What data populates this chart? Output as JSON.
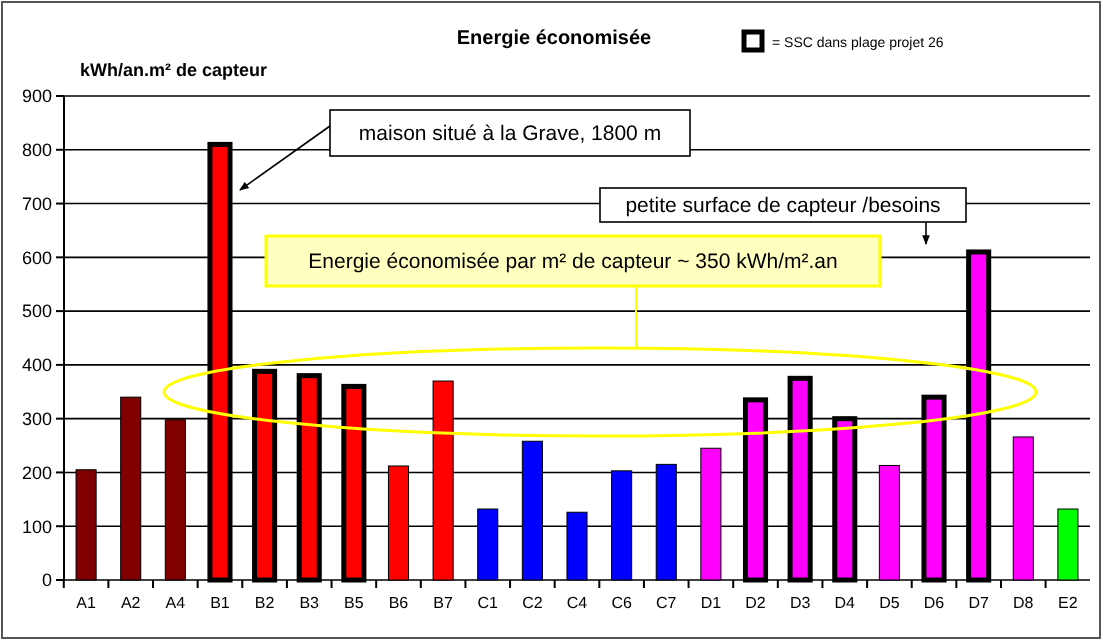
{
  "chart_data": {
    "type": "bar",
    "title": "Energie économisée",
    "ylabel": "kWh/an.m² de capteur",
    "categories": [
      "A1",
      "A2",
      "A4",
      "B1",
      "B2",
      "B3",
      "B5",
      "B6",
      "B7",
      "C1",
      "C2",
      "C4",
      "C6",
      "C7",
      "D1",
      "D2",
      "D3",
      "D4",
      "D5",
      "D6",
      "D7",
      "D8",
      "E2"
    ],
    "series": [
      {
        "colors": [
          "#800000",
          "#800000",
          "#800000",
          null,
          null,
          null,
          null,
          "#ff0000",
          "#ff0000",
          "#0000ff",
          "#0000ff",
          "#0000ff",
          "#0000ff",
          "#0000ff",
          "#ff00ff",
          null,
          null,
          null,
          "#ff00ff",
          null,
          null,
          "#ff00ff",
          "#00ff00"
        ],
        "values": [
          205,
          340,
          298,
          null,
          null,
          null,
          null,
          212,
          370,
          132,
          258,
          126,
          203,
          215,
          245,
          null,
          null,
          null,
          213,
          null,
          null,
          266,
          132
        ]
      },
      {
        "name": "= SSC dans plage projet 26",
        "color": "#000000",
        "colors": [
          null,
          null,
          null,
          "#ff0000",
          "#ff0000",
          "#ff0000",
          "#ff0000",
          null,
          null,
          null,
          null,
          null,
          null,
          null,
          null,
          "#ff00ff",
          "#ff00ff",
          "#ff00ff",
          null,
          "#ff00ff",
          "#ff00ff",
          null,
          null
        ],
        "values": [
          null,
          null,
          null,
          810,
          388,
          380,
          360,
          null,
          null,
          null,
          null,
          null,
          null,
          null,
          null,
          335,
          375,
          300,
          null,
          340,
          610,
          null,
          null
        ]
      }
    ],
    "ylim": [
      0,
      900
    ],
    "yticks": [
      0,
      100,
      200,
      300,
      400,
      500,
      600,
      700,
      800,
      900
    ],
    "grid": "y",
    "legend": "top right",
    "annotations": [
      "maison situé à la Grave, 1800 m",
      "petite surface de capteur /besoins",
      "Energie économisée par m² de capteur ~ 350 kWh/m².an"
    ]
  }
}
